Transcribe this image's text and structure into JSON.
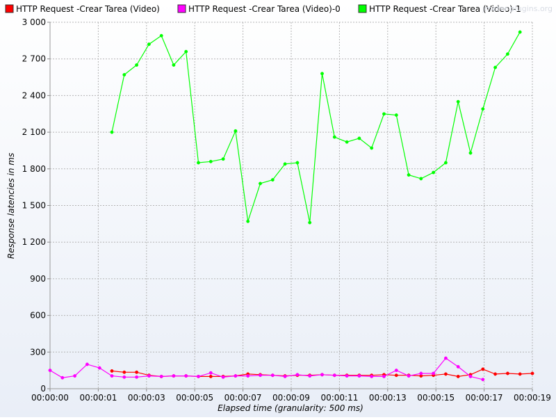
{
  "watermark": "jmeter-plugins.org",
  "colors": {
    "background_top": "#ffffff",
    "background_bottom": "#e9eef7",
    "grid": "#b4b4b4",
    "axis_text": "#000000"
  },
  "chart_data": {
    "type": "line",
    "title": "",
    "xlabel": "Elapsed time (granularity: 500 ms)",
    "ylabel": "Response latencies in ms",
    "x_unit": "seconds elapsed",
    "xlim": [
      0,
      19.5
    ],
    "ylim": [
      0,
      3000
    ],
    "grid": true,
    "legend_position": "top",
    "x_tick_labels": [
      {
        "t": 0,
        "label": "00:00:00"
      },
      {
        "t": 1.95,
        "label": "00:00:01"
      },
      {
        "t": 3.9,
        "label": "00:00:03"
      },
      {
        "t": 5.85,
        "label": "00:00:05"
      },
      {
        "t": 7.8,
        "label": "00:00:07"
      },
      {
        "t": 9.75,
        "label": "00:00:09"
      },
      {
        "t": 11.7,
        "label": "00:00:11"
      },
      {
        "t": 13.65,
        "label": "00:00:13"
      },
      {
        "t": 15.6,
        "label": "00:00:15"
      },
      {
        "t": 17.55,
        "label": "00:00:17"
      },
      {
        "t": 19.5,
        "label": "00:00:19"
      }
    ],
    "y_tick_labels": [
      {
        "v": 0,
        "label": "0"
      },
      {
        "v": 300,
        "label": "300"
      },
      {
        "v": 600,
        "label": "600"
      },
      {
        "v": 900,
        "label": "900"
      },
      {
        "v": 1200,
        "label": "1 200"
      },
      {
        "v": 1500,
        "label": "1 500"
      },
      {
        "v": 1800,
        "label": "1 800"
      },
      {
        "v": 2100,
        "label": "2 100"
      },
      {
        "v": 2400,
        "label": "2 400"
      },
      {
        "v": 2700,
        "label": "2 700"
      },
      {
        "v": 3000,
        "label": "3 000"
      }
    ],
    "series": [
      {
        "name": "HTTP Request -Crear Tarea  (Video)",
        "color": "#ff0000",
        "points": [
          [
            2.5,
            145
          ],
          [
            3.0,
            135
          ],
          [
            3.5,
            135
          ],
          [
            4.0,
            110
          ],
          [
            4.5,
            100
          ],
          [
            5.0,
            105
          ],
          [
            5.5,
            105
          ],
          [
            6.0,
            100
          ],
          [
            6.5,
            100
          ],
          [
            7.0,
            100
          ],
          [
            7.5,
            105
          ],
          [
            8.0,
            120
          ],
          [
            8.5,
            115
          ],
          [
            9.0,
            110
          ],
          [
            9.5,
            105
          ],
          [
            10.0,
            110
          ],
          [
            10.5,
            110
          ],
          [
            11.0,
            115
          ],
          [
            11.5,
            110
          ],
          [
            12.0,
            110
          ],
          [
            12.5,
            110
          ],
          [
            13.0,
            110
          ],
          [
            13.5,
            115
          ],
          [
            14.0,
            110
          ],
          [
            14.5,
            110
          ],
          [
            15.0,
            105
          ],
          [
            15.5,
            110
          ],
          [
            16.0,
            120
          ],
          [
            16.5,
            100
          ],
          [
            17.0,
            115
          ],
          [
            17.5,
            160
          ],
          [
            18.0,
            120
          ],
          [
            18.5,
            125
          ],
          [
            19.0,
            120
          ],
          [
            19.5,
            125
          ]
        ]
      },
      {
        "name": "HTTP Request -Crear Tarea  (Video)-0",
        "color": "#ff00ff",
        "points": [
          [
            0.0,
            150
          ],
          [
            0.5,
            90
          ],
          [
            1.0,
            105
          ],
          [
            1.5,
            200
          ],
          [
            2.0,
            170
          ],
          [
            2.5,
            105
          ],
          [
            3.0,
            95
          ],
          [
            3.5,
            95
          ],
          [
            4.0,
            105
          ],
          [
            4.5,
            100
          ],
          [
            5.0,
            105
          ],
          [
            5.5,
            105
          ],
          [
            6.0,
            100
          ],
          [
            6.5,
            130
          ],
          [
            7.0,
            95
          ],
          [
            7.5,
            105
          ],
          [
            8.0,
            105
          ],
          [
            8.5,
            110
          ],
          [
            9.0,
            110
          ],
          [
            9.5,
            100
          ],
          [
            10.0,
            115
          ],
          [
            10.5,
            105
          ],
          [
            11.0,
            115
          ],
          [
            11.5,
            110
          ],
          [
            12.0,
            105
          ],
          [
            12.5,
            105
          ],
          [
            13.0,
            100
          ],
          [
            13.5,
            100
          ],
          [
            14.0,
            150
          ],
          [
            14.5,
            105
          ],
          [
            15.0,
            125
          ],
          [
            15.5,
            125
          ],
          [
            16.0,
            250
          ],
          [
            16.5,
            180
          ],
          [
            17.0,
            100
          ],
          [
            17.5,
            75
          ]
        ]
      },
      {
        "name": "HTTP Request -Crear Tarea  (Video)-1",
        "color": "#00ff00",
        "points": [
          [
            2.5,
            2100
          ],
          [
            3.0,
            2570
          ],
          [
            3.5,
            2650
          ],
          [
            4.0,
            2820
          ],
          [
            4.5,
            2890
          ],
          [
            5.0,
            2650
          ],
          [
            5.5,
            2760
          ],
          [
            6.0,
            1850
          ],
          [
            6.5,
            1860
          ],
          [
            7.0,
            1880
          ],
          [
            7.5,
            2110
          ],
          [
            8.0,
            1370
          ],
          [
            8.5,
            1680
          ],
          [
            9.0,
            1710
          ],
          [
            9.5,
            1840
          ],
          [
            10.0,
            1850
          ],
          [
            10.5,
            1360
          ],
          [
            11.0,
            2580
          ],
          [
            11.5,
            2060
          ],
          [
            12.0,
            2020
          ],
          [
            12.5,
            2050
          ],
          [
            13.0,
            1970
          ],
          [
            13.5,
            2250
          ],
          [
            14.0,
            2240
          ],
          [
            14.5,
            1750
          ],
          [
            15.0,
            1720
          ],
          [
            15.5,
            1770
          ],
          [
            16.0,
            1850
          ],
          [
            16.5,
            2350
          ],
          [
            17.0,
            1930
          ],
          [
            17.5,
            2290
          ],
          [
            18.0,
            2630
          ],
          [
            18.5,
            2740
          ],
          [
            19.0,
            2920
          ]
        ]
      }
    ]
  }
}
